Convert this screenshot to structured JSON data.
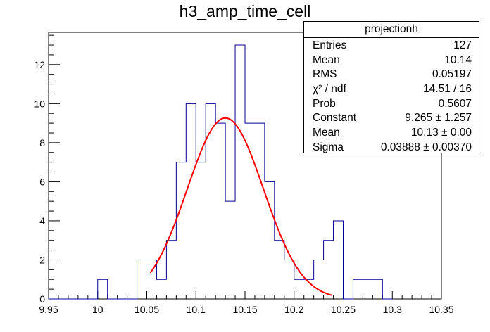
{
  "chart_data": {
    "type": "bar",
    "style": "step-histogram",
    "title": "h3_amp_time_cell",
    "xlabel": "",
    "ylabel": "",
    "xlim": [
      9.95,
      10.35
    ],
    "ylim": [
      0,
      13.65
    ],
    "x_ticks": [
      "9.95",
      "10",
      "10.05",
      "10.1",
      "10.15",
      "10.2",
      "10.25",
      "10.3",
      "10.35"
    ],
    "y_ticks": [
      "0",
      "2",
      "4",
      "6",
      "8",
      "10",
      "12"
    ],
    "bin_width": 0.01,
    "bins": [
      {
        "x0": 9.95,
        "x1": 9.96,
        "count": 0
      },
      {
        "x0": 9.96,
        "x1": 9.97,
        "count": 0
      },
      {
        "x0": 9.97,
        "x1": 9.98,
        "count": 0
      },
      {
        "x0": 9.98,
        "x1": 9.99,
        "count": 0
      },
      {
        "x0": 9.99,
        "x1": 10.0,
        "count": 0
      },
      {
        "x0": 10.0,
        "x1": 10.01,
        "count": 1
      },
      {
        "x0": 10.01,
        "x1": 10.02,
        "count": 0
      },
      {
        "x0": 10.02,
        "x1": 10.03,
        "count": 0
      },
      {
        "x0": 10.03,
        "x1": 10.04,
        "count": 0
      },
      {
        "x0": 10.04,
        "x1": 10.05,
        "count": 2
      },
      {
        "x0": 10.05,
        "x1": 10.06,
        "count": 2
      },
      {
        "x0": 10.06,
        "x1": 10.07,
        "count": 1
      },
      {
        "x0": 10.07,
        "x1": 10.08,
        "count": 3
      },
      {
        "x0": 10.08,
        "x1": 10.09,
        "count": 7
      },
      {
        "x0": 10.09,
        "x1": 10.1,
        "count": 10
      },
      {
        "x0": 10.1,
        "x1": 10.11,
        "count": 7
      },
      {
        "x0": 10.11,
        "x1": 10.12,
        "count": 10
      },
      {
        "x0": 10.12,
        "x1": 10.13,
        "count": 9
      },
      {
        "x0": 10.13,
        "x1": 10.14,
        "count": 5
      },
      {
        "x0": 10.14,
        "x1": 10.15,
        "count": 13
      },
      {
        "x0": 10.15,
        "x1": 10.16,
        "count": 9
      },
      {
        "x0": 10.16,
        "x1": 10.17,
        "count": 9
      },
      {
        "x0": 10.17,
        "x1": 10.18,
        "count": 6
      },
      {
        "x0": 10.18,
        "x1": 10.19,
        "count": 3
      },
      {
        "x0": 10.19,
        "x1": 10.2,
        "count": 2
      },
      {
        "x0": 10.2,
        "x1": 10.21,
        "count": 1
      },
      {
        "x0": 10.21,
        "x1": 10.22,
        "count": 1
      },
      {
        "x0": 10.22,
        "x1": 10.23,
        "count": 2
      },
      {
        "x0": 10.23,
        "x1": 10.24,
        "count": 3
      },
      {
        "x0": 10.24,
        "x1": 10.25,
        "count": 4
      },
      {
        "x0": 10.25,
        "x1": 10.26,
        "count": 0
      },
      {
        "x0": 10.26,
        "x1": 10.27,
        "count": 1
      },
      {
        "x0": 10.27,
        "x1": 10.28,
        "count": 1
      },
      {
        "x0": 10.28,
        "x1": 10.29,
        "count": 1
      },
      {
        "x0": 10.29,
        "x1": 10.3,
        "count": 0
      }
    ],
    "fit": {
      "function": "gaus",
      "constant": 9.265,
      "mean": 10.13,
      "sigma": 0.03888,
      "x_range": [
        10.0535,
        10.2383
      ],
      "color": "#ff0000"
    },
    "histogram_color": "#000099",
    "grid": false,
    "legend_placement": "top-right"
  },
  "stats_box": {
    "header": "projectionh",
    "rows": [
      {
        "key": "Entries",
        "value": "127"
      },
      {
        "key": "Mean",
        "value": "10.14"
      },
      {
        "key": "RMS",
        "value": "0.05197"
      },
      {
        "key": "χ² / ndf",
        "value": "14.51 / 16"
      },
      {
        "key": "Prob",
        "value": "0.5607"
      },
      {
        "key": "Constant",
        "value": "9.265 ± 1.257"
      },
      {
        "key": "Mean",
        "value": "10.13 ± 0.00"
      },
      {
        "key": "Sigma",
        "value": "0.03888 ± 0.00370"
      }
    ]
  }
}
